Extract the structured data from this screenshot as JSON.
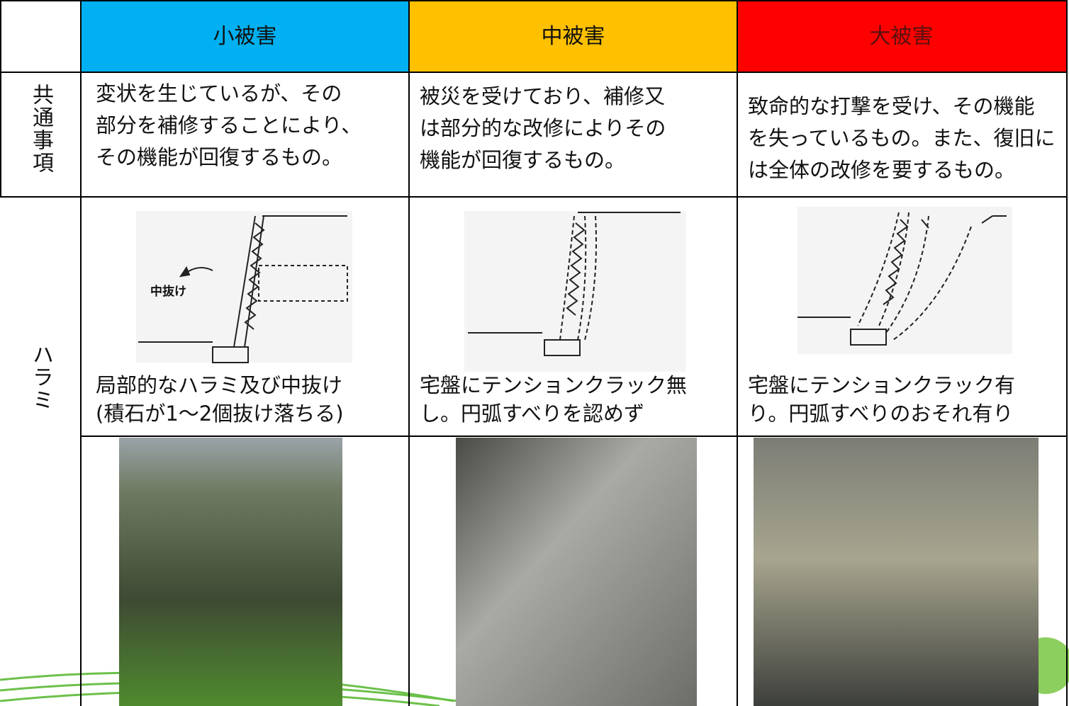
{
  "table": {
    "headers": [
      "小被害",
      "中被害",
      "大被害"
    ],
    "rows": [
      {
        "label": "共通事項",
        "cells": [
          [
            "変状を生じているが、その",
            "部分を補修することにより、",
            "その機能が回復するもの。"
          ],
          [
            "被災を受けており、補修又",
            "は部分的な改修によりその",
            "機能が回復するもの。"
          ],
          [
            "致命的な打撃を受け、その機能",
            "を失っているもの。また、復旧に",
            "は全体の改修を要するもの。"
          ]
        ]
      },
      {
        "label": "ハラミ",
        "cells": [
          [
            "局部的なハラミ及び中抜け",
            "(積石が1～2個抜け落ちる)"
          ],
          [
            "宅盤にテンションクラック無",
            "し。円弧すべりを認めず"
          ],
          [
            "宅盤にテンションクラック有",
            "り。円弧すべりのおそれ有り"
          ]
        ]
      }
    ]
  },
  "diagram": {
    "label": "中抜け"
  }
}
